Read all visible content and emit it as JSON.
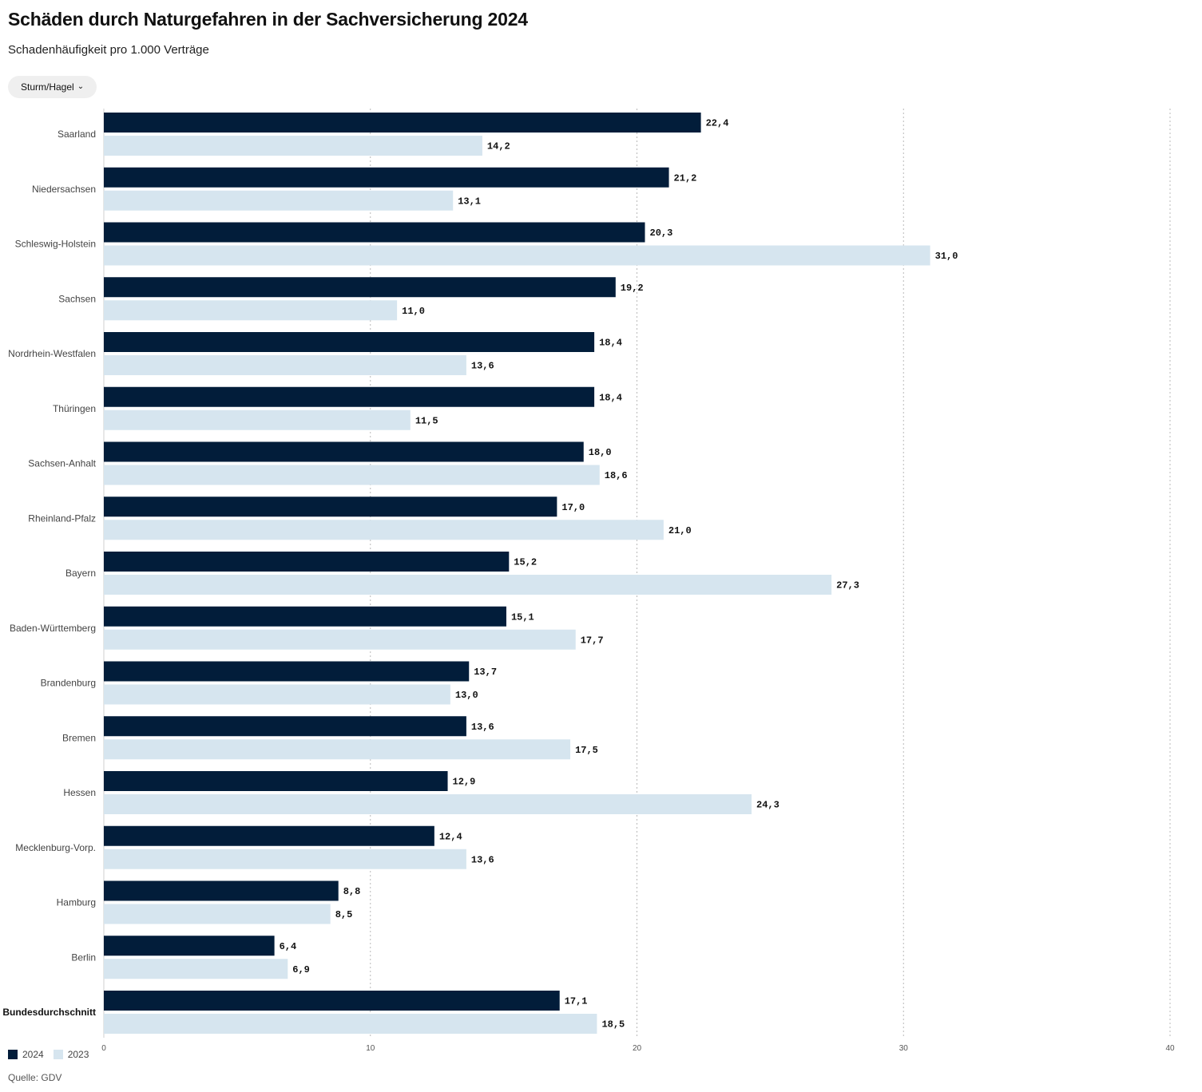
{
  "header": {
    "title": "Schäden durch Naturgefahren in der Sachversicherung 2024",
    "subtitle": "Schadenhäufigkeit pro 1.000 Verträge"
  },
  "filter": {
    "selected": "Sturm/Hagel"
  },
  "footer": {
    "source": "Quelle: GDV"
  },
  "colors": {
    "series_2024": "#021d3a",
    "series_2023": "#d6e5ef",
    "grid": "#b9b9b9"
  },
  "chart_data": {
    "type": "bar",
    "orientation": "horizontal",
    "title": "",
    "xlabel": "",
    "ylabel": "",
    "xlim": [
      0,
      40
    ],
    "xticks": [
      0,
      10,
      20,
      30,
      40
    ],
    "grid": true,
    "legend_position": "bottom-left",
    "categories": [
      "Saarland",
      "Niedersachsen",
      "Schleswig-Holstein",
      "Sachsen",
      "Nordrhein-Westfalen",
      "Thüringen",
      "Sachsen-Anhalt",
      "Rheinland-Pfalz",
      "Bayern",
      "Baden-Württemberg",
      "Brandenburg",
      "Bremen",
      "Hessen",
      "Mecklenburg-Vorp.",
      "Hamburg",
      "Berlin",
      "Bundesdurchschnitt"
    ],
    "series": [
      {
        "name": "2024",
        "values": [
          22.4,
          21.2,
          20.3,
          19.2,
          18.4,
          18.4,
          18.0,
          17.0,
          15.2,
          15.1,
          13.7,
          13.6,
          12.9,
          12.4,
          8.8,
          6.4,
          17.1
        ],
        "labels": [
          "22,4",
          "21,2",
          "20,3",
          "19,2",
          "18,4",
          "18,4",
          "18,0",
          "17,0",
          "15,2",
          "15,1",
          "13,7",
          "13,6",
          "12,9",
          "12,4",
          "8,8",
          "6,4",
          "17,1"
        ]
      },
      {
        "name": "2023",
        "values": [
          14.2,
          13.1,
          31.0,
          11.0,
          13.6,
          11.5,
          18.6,
          21.0,
          27.3,
          17.7,
          13.0,
          17.5,
          24.3,
          13.6,
          8.5,
          6.9,
          18.5
        ],
        "labels": [
          "14,2",
          "13,1",
          "31,0",
          "11,0",
          "13,6",
          "11,5",
          "18,6",
          "21,0",
          "27,3",
          "17,7",
          "13,0",
          "17,5",
          "24,3",
          "13,6",
          "8,5",
          "6,9",
          "18,5"
        ]
      }
    ],
    "emphasized_category": "Bundesdurchschnitt"
  }
}
